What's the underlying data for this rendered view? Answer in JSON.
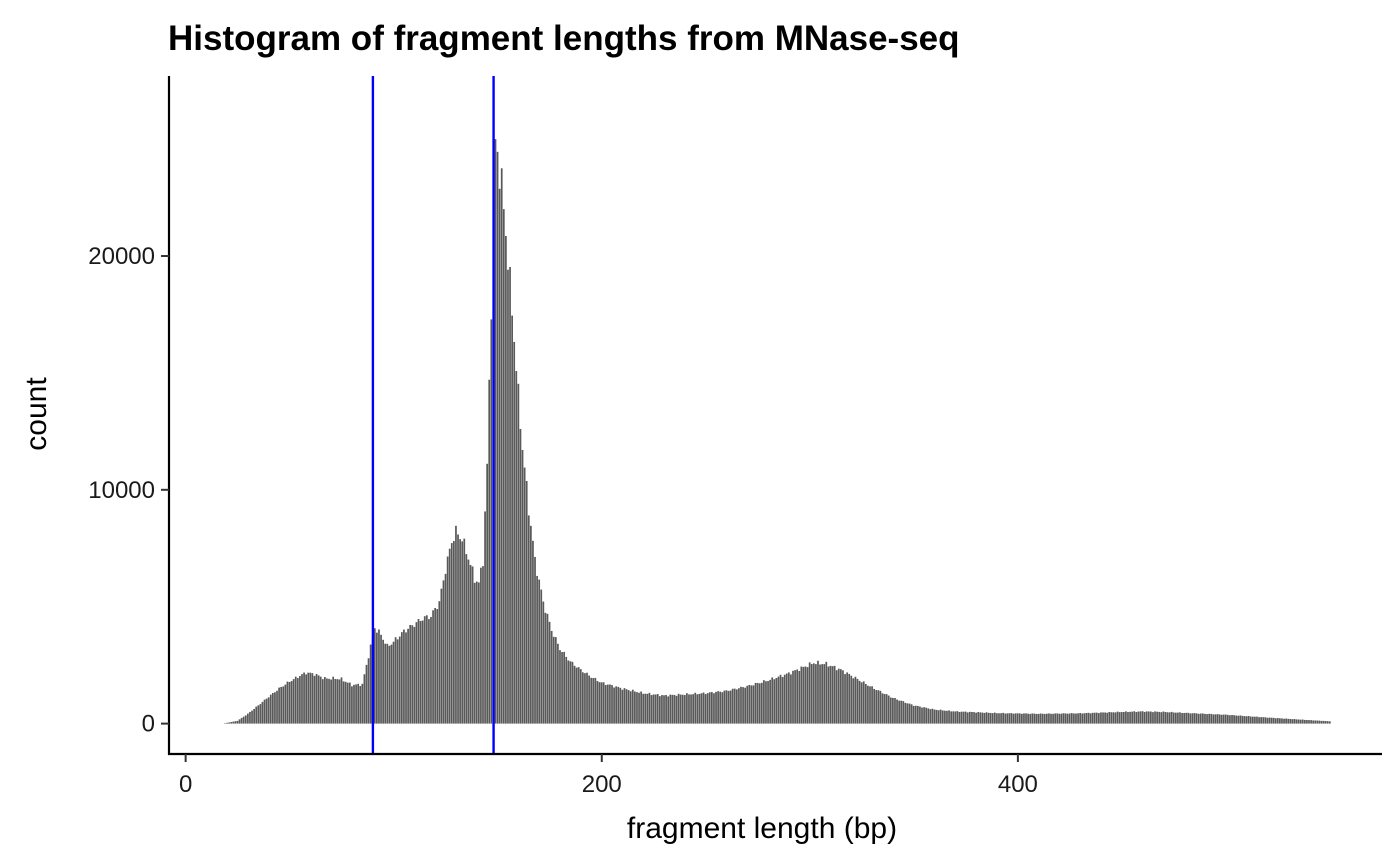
{
  "chart_data": {
    "type": "bar",
    "title": "Histogram of fragment lengths from MNase-seq",
    "xlabel": "fragment length (bp)",
    "ylabel": "count",
    "xlim": [
      -8,
      575
    ],
    "ylim": [
      -1300,
      27700
    ],
    "x_ticks": [
      0,
      200,
      400
    ],
    "y_ticks": [
      0,
      10000,
      20000
    ],
    "bin_width": 1,
    "bar_color": "#595959",
    "vline_color": "#0000ff",
    "vlines": [
      90,
      148
    ],
    "grid": false,
    "legend": "none",
    "profile_points": [
      [
        18,
        0
      ],
      [
        25,
        120
      ],
      [
        30,
        420
      ],
      [
        35,
        780
      ],
      [
        40,
        1150
      ],
      [
        45,
        1500
      ],
      [
        50,
        1800
      ],
      [
        55,
        2050
      ],
      [
        58,
        2180
      ],
      [
        62,
        2120
      ],
      [
        67,
        1930
      ],
      [
        72,
        1930
      ],
      [
        75,
        1900
      ],
      [
        80,
        1650
      ],
      [
        85,
        1680
      ],
      [
        88,
        2900
      ],
      [
        91,
        4100
      ],
      [
        94,
        3800
      ],
      [
        97,
        3300
      ],
      [
        100,
        3500
      ],
      [
        105,
        3950
      ],
      [
        110,
        4250
      ],
      [
        114,
        4500
      ],
      [
        118,
        4600
      ],
      [
        122,
        5200
      ],
      [
        125,
        6600
      ],
      [
        128,
        7800
      ],
      [
        130,
        8200
      ],
      [
        133,
        7900
      ],
      [
        136,
        7100
      ],
      [
        139,
        6200
      ],
      [
        141,
        6000
      ],
      [
        143,
        7000
      ],
      [
        145,
        11000
      ],
      [
        147,
        18000
      ],
      [
        148,
        22000
      ],
      [
        149,
        24800
      ],
      [
        150,
        24400
      ],
      [
        152,
        23000
      ],
      [
        154,
        21000
      ],
      [
        156,
        18800
      ],
      [
        158,
        16500
      ],
      [
        160,
        14000
      ],
      [
        162,
        11800
      ],
      [
        165,
        9200
      ],
      [
        168,
        7000
      ],
      [
        172,
        5200
      ],
      [
        176,
        4000
      ],
      [
        180,
        3200
      ],
      [
        185,
        2650
      ],
      [
        190,
        2300
      ],
      [
        195,
        2000
      ],
      [
        200,
        1750
      ],
      [
        210,
        1500
      ],
      [
        220,
        1300
      ],
      [
        230,
        1200
      ],
      [
        240,
        1250
      ],
      [
        250,
        1300
      ],
      [
        260,
        1400
      ],
      [
        270,
        1600
      ],
      [
        280,
        1850
      ],
      [
        290,
        2150
      ],
      [
        298,
        2450
      ],
      [
        302,
        2600
      ],
      [
        308,
        2550
      ],
      [
        315,
        2300
      ],
      [
        322,
        1950
      ],
      [
        330,
        1550
      ],
      [
        340,
        1100
      ],
      [
        350,
        780
      ],
      [
        360,
        600
      ],
      [
        370,
        520
      ],
      [
        390,
        450
      ],
      [
        410,
        420
      ],
      [
        430,
        440
      ],
      [
        450,
        500
      ],
      [
        460,
        520
      ],
      [
        470,
        500
      ],
      [
        480,
        460
      ],
      [
        500,
        380
      ],
      [
        520,
        260
      ],
      [
        540,
        150
      ],
      [
        550,
        100
      ]
    ]
  }
}
